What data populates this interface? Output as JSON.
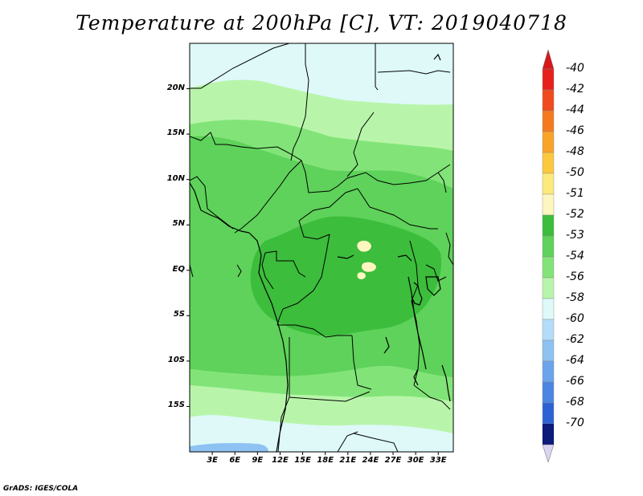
{
  "title": "Temperature at 200hPa [C], VT: 2019040718",
  "footer": "GrADS: IGES/COLA",
  "map": {
    "lon_range": [
      0,
      35
    ],
    "lat_range": [
      -20,
      25
    ],
    "y_ticks": [
      {
        "lat": 20,
        "label": "20N"
      },
      {
        "lat": 15,
        "label": "15N"
      },
      {
        "lat": 10,
        "label": "10N"
      },
      {
        "lat": 5,
        "label": "5N"
      },
      {
        "lat": 0,
        "label": "EQ"
      },
      {
        "lat": -5,
        "label": "5S"
      },
      {
        "lat": -10,
        "label": "10S"
      },
      {
        "lat": -15,
        "label": "15S"
      }
    ],
    "x_ticks": [
      {
        "lon": 3,
        "label": "3E"
      },
      {
        "lon": 6,
        "label": "6E"
      },
      {
        "lon": 9,
        "label": "9E"
      },
      {
        "lon": 12,
        "label": "12E"
      },
      {
        "lon": 15,
        "label": "15E"
      },
      {
        "lon": 18,
        "label": "18E"
      },
      {
        "lon": 21,
        "label": "21E"
      },
      {
        "lon": 24,
        "label": "24E"
      },
      {
        "lon": 27,
        "label": "27E"
      },
      {
        "lon": 30,
        "label": "30E"
      },
      {
        "lon": 33,
        "label": "33E"
      }
    ]
  },
  "legend": {
    "levels": [
      {
        "label": "-40",
        "color": "#e8201c"
      },
      {
        "label": "-42",
        "color": "#f04a1e"
      },
      {
        "label": "-44",
        "color": "#f57a1f"
      },
      {
        "label": "-46",
        "color": "#f9a328"
      },
      {
        "label": "-48",
        "color": "#fbc83e"
      },
      {
        "label": "-50",
        "color": "#fde97c"
      },
      {
        "label": "-51",
        "color": "#fdf6bf"
      },
      {
        "label": "-52",
        "color": "#3cbd3c"
      },
      {
        "label": "-53",
        "color": "#5ed25a"
      },
      {
        "label": "-54",
        "color": "#82e478"
      },
      {
        "label": "-56",
        "color": "#b8f5aa"
      },
      {
        "label": "-58",
        "color": "#def9f8"
      },
      {
        "label": "-60",
        "color": "#b4dcf8"
      },
      {
        "label": "-62",
        "color": "#8ec2f3"
      },
      {
        "label": "-64",
        "color": "#6aa4ec"
      },
      {
        "label": "-66",
        "color": "#4a86e2"
      },
      {
        "label": "-68",
        "color": "#2c62d4"
      },
      {
        "label": "-70",
        "color": "#1a40b8"
      }
    ],
    "top_color": "#d81818",
    "bottom_tip_color": "#d8d4f2",
    "bottom_band_color": "#0c1a7a"
  },
  "colors": {
    "pale_cyan": "#def9f8",
    "pale_green": "#b8f5aa",
    "light_green": "#82e478",
    "mid_green": "#5ed25a",
    "dark_green": "#3cbd3c",
    "pale_yellow": "#fdf6bf",
    "light_blue": "#8ec2f3"
  }
}
